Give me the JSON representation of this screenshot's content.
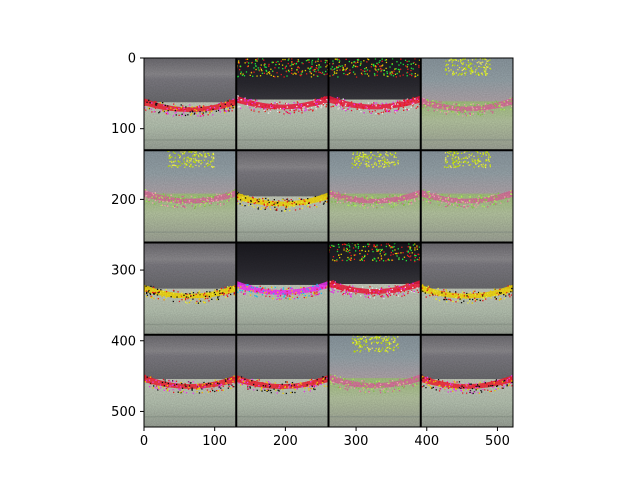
{
  "image": {
    "grid": {
      "rows": 4,
      "cols": 4
    },
    "extent": {
      "x": [
        0,
        522
      ],
      "y": [
        522,
        0
      ]
    },
    "tiles": [
      {
        "kind": "grey-red"
      },
      {
        "kind": "dark-red"
      },
      {
        "kind": "dark-red"
      },
      {
        "kind": "yellow-top"
      },
      {
        "kind": "yellow-top"
      },
      {
        "kind": "grey-yellow"
      },
      {
        "kind": "yellow-top"
      },
      {
        "kind": "yellow-top"
      },
      {
        "kind": "grey-yellow"
      },
      {
        "kind": "dark-magenta"
      },
      {
        "kind": "dark-red"
      },
      {
        "kind": "grey-yellow"
      },
      {
        "kind": "grey-red"
      },
      {
        "kind": "grey-red"
      },
      {
        "kind": "yellow-top"
      },
      {
        "kind": "grey-red"
      }
    ]
  },
  "xaxis": {
    "ticks": [
      0,
      100,
      200,
      300,
      400,
      500
    ],
    "tick_labels": [
      "0",
      "100",
      "200",
      "300",
      "400",
      "500"
    ]
  },
  "yaxis": {
    "ticks": [
      0,
      100,
      200,
      300,
      400,
      500
    ],
    "tick_labels": [
      "0",
      "100",
      "200",
      "300",
      "400",
      "500"
    ]
  }
}
